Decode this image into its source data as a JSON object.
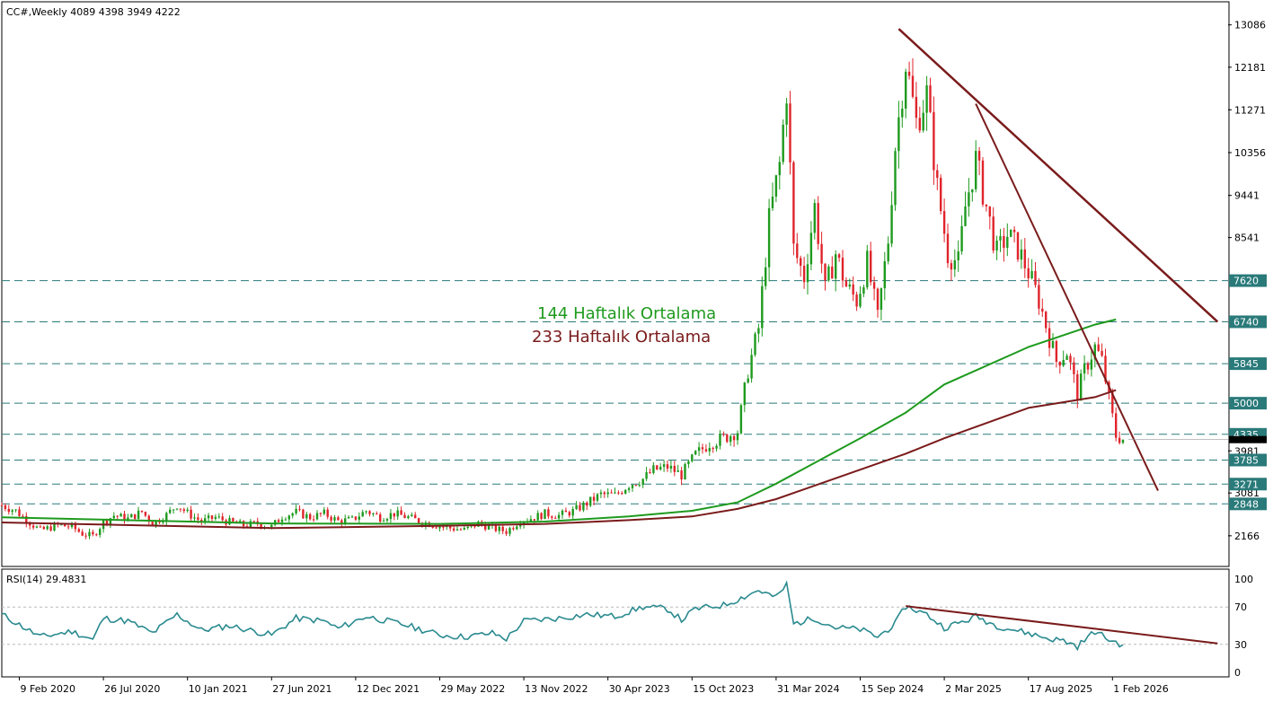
{
  "chart_data": {
    "type": "candlestick",
    "symbol_info": "CC#,Weekly  4089 4398 3949 4222",
    "ohlc_last": {
      "open": 4089,
      "high": 4398,
      "low": 3949,
      "close": 4222
    },
    "price_axis_ticks": [
      13086,
      12181,
      11271,
      10356,
      9441,
      8541,
      3981,
      3081,
      2166
    ],
    "price_range": [
      1530,
      13560
    ],
    "level_labels": [
      {
        "label": "7620",
        "value": 7620
      },
      {
        "label": "6740",
        "value": 6740
      },
      {
        "label": "5845",
        "value": 5845
      },
      {
        "label": "5000",
        "value": 5000
      },
      {
        "label": "4335",
        "value": 4335
      },
      {
        "label": "3785",
        "value": 3785
      },
      {
        "label": "3271",
        "value": 3271
      },
      {
        "label": "2848",
        "value": 2848
      }
    ],
    "current_price_marker": 4222,
    "x_tick_labels": [
      "9 Feb 2020",
      "26 Jul 2020",
      "10 Jan 2021",
      "27 Jun 2021",
      "12 Dec 2021",
      "29 May 2022",
      "13 Nov 2022",
      "30 Apr 2023",
      "15 Oct 2023",
      "31 Mar 2024",
      "15 Sep 2024",
      "2 Mar 2025",
      "17 Aug 2025",
      "1 Feb 2026"
    ],
    "x_tick_dates": [
      "2020-02-09",
      "2020-07-26",
      "2021-01-10",
      "2021-06-27",
      "2021-12-12",
      "2022-05-29",
      "2022-11-13",
      "2023-04-30",
      "2023-10-15",
      "2024-03-31",
      "2024-09-15",
      "2025-03-02",
      "2025-08-17",
      "2026-02-01"
    ],
    "price_series": [
      [
        "2020-01-05",
        2820
      ],
      [
        "2020-02-02",
        2700
      ],
      [
        "2020-03-01",
        2450
      ],
      [
        "2020-03-22",
        2280
      ],
      [
        "2020-04-26",
        2390
      ],
      [
        "2020-05-24",
        2360
      ],
      [
        "2020-06-14",
        2210
      ],
      [
        "2020-07-05",
        2160
      ],
      [
        "2020-07-26",
        2460
      ],
      [
        "2020-08-16",
        2600
      ],
      [
        "2020-09-13",
        2530
      ],
      [
        "2020-10-11",
        2680
      ],
      [
        "2020-11-01",
        2430
      ],
      [
        "2020-11-29",
        2610
      ],
      [
        "2020-12-20",
        2830
      ],
      [
        "2021-01-10",
        2650
      ],
      [
        "2021-02-07",
        2470
      ],
      [
        "2021-03-07",
        2560
      ],
      [
        "2021-04-04",
        2460
      ],
      [
        "2021-05-02",
        2390
      ],
      [
        "2021-05-30",
        2430
      ],
      [
        "2021-06-27",
        2360
      ],
      [
        "2021-07-18",
        2580
      ],
      [
        "2021-08-15",
        2670
      ],
      [
        "2021-09-12",
        2560
      ],
      [
        "2021-10-10",
        2640
      ],
      [
        "2021-11-07",
        2480
      ],
      [
        "2021-12-05",
        2510
      ],
      [
        "2022-01-02",
        2700
      ],
      [
        "2022-01-30",
        2560
      ],
      [
        "2022-02-27",
        2640
      ],
      [
        "2022-03-27",
        2560
      ],
      [
        "2022-04-24",
        2460
      ],
      [
        "2022-05-22",
        2390
      ],
      [
        "2022-06-19",
        2330
      ],
      [
        "2022-07-17",
        2290
      ],
      [
        "2022-08-14",
        2430
      ],
      [
        "2022-09-11",
        2330
      ],
      [
        "2022-10-09",
        2260
      ],
      [
        "2022-11-06",
        2490
      ],
      [
        "2022-12-04",
        2560
      ],
      [
        "2022-12-25",
        2640
      ],
      [
        "2023-01-22",
        2600
      ],
      [
        "2023-02-19",
        2690
      ],
      [
        "2023-03-19",
        2860
      ],
      [
        "2023-04-16",
        3050
      ],
      [
        "2023-05-14",
        3030
      ],
      [
        "2023-06-11",
        3260
      ],
      [
        "2023-07-09",
        3380
      ],
      [
        "2023-07-30",
        3570
      ],
      [
        "2023-08-27",
        3640
      ],
      [
        "2023-09-24",
        3470
      ],
      [
        "2023-10-22",
        3900
      ],
      [
        "2023-11-19",
        4150
      ],
      [
        "2023-12-17",
        4250
      ],
      [
        "2024-01-14",
        4400
      ],
      [
        "2024-02-04",
        5700
      ],
      [
        "2024-02-25",
        6600
      ],
      [
        "2024-03-17",
        8900
      ],
      [
        "2024-04-07",
        10100
      ],
      [
        "2024-04-21",
        11700
      ],
      [
        "2024-05-05",
        8300
      ],
      [
        "2024-05-26",
        7700
      ],
      [
        "2024-06-16",
        9200
      ],
      [
        "2024-07-07",
        7400
      ],
      [
        "2024-07-28",
        8200
      ],
      [
        "2024-08-18",
        7500
      ],
      [
        "2024-09-08",
        7200
      ],
      [
        "2024-09-29",
        8000
      ],
      [
        "2024-10-20",
        6800
      ],
      [
        "2024-11-10",
        8500
      ],
      [
        "2024-11-24",
        10500
      ],
      [
        "2024-12-15",
        12300
      ],
      [
        "2025-01-05",
        11000
      ],
      [
        "2025-01-26",
        11600
      ],
      [
        "2025-02-16",
        9600
      ],
      [
        "2025-03-09",
        8200
      ],
      [
        "2025-03-30",
        8000
      ],
      [
        "2025-04-13",
        9200
      ],
      [
        "2025-05-04",
        10200
      ],
      [
        "2025-05-25",
        9200
      ],
      [
        "2025-06-15",
        8200
      ],
      [
        "2025-07-06",
        8600
      ],
      [
        "2025-07-27",
        8300
      ],
      [
        "2025-08-17",
        7800
      ],
      [
        "2025-09-07",
        7200
      ],
      [
        "2025-09-28",
        6400
      ],
      [
        "2025-10-12",
        5900
      ],
      [
        "2025-11-02",
        6100
      ],
      [
        "2025-11-23",
        5200
      ],
      [
        "2025-12-07",
        5700
      ],
      [
        "2025-12-28",
        6200
      ],
      [
        "2026-01-11",
        5900
      ],
      [
        "2026-01-25",
        5100
      ],
      [
        "2026-02-08",
        4300
      ],
      [
        "2026-02-22",
        4222
      ]
    ],
    "series": [
      {
        "name": "144 Haftalık Ortalama",
        "color": "#1e9a1e",
        "points": [
          [
            "2020-01-05",
            2560
          ],
          [
            "2021-06-27",
            2430
          ],
          [
            "2022-05-29",
            2420
          ],
          [
            "2022-12-25",
            2470
          ],
          [
            "2023-06-11",
            2580
          ],
          [
            "2023-10-15",
            2700
          ],
          [
            "2024-01-14",
            2880
          ],
          [
            "2024-03-31",
            3280
          ],
          [
            "2024-09-15",
            4250
          ],
          [
            "2024-12-15",
            4800
          ],
          [
            "2025-03-02",
            5400
          ],
          [
            "2025-08-17",
            6200
          ],
          [
            "2025-12-28",
            6680
          ],
          [
            "2026-02-08",
            6790
          ]
        ]
      },
      {
        "name": "233 Haftalık Ortalama",
        "color": "#7a1b1b",
        "points": [
          [
            "2020-01-05",
            2450
          ],
          [
            "2021-06-27",
            2330
          ],
          [
            "2022-05-29",
            2380
          ],
          [
            "2022-12-25",
            2420
          ],
          [
            "2023-06-11",
            2500
          ],
          [
            "2023-10-15",
            2580
          ],
          [
            "2024-01-14",
            2740
          ],
          [
            "2024-03-31",
            2950
          ],
          [
            "2024-09-15",
            3580
          ],
          [
            "2024-12-15",
            3920
          ],
          [
            "2025-03-02",
            4250
          ],
          [
            "2025-08-17",
            4900
          ],
          [
            "2025-12-28",
            5130
          ],
          [
            "2026-02-08",
            5280
          ]
        ]
      }
    ],
    "trendlines": [
      {
        "from": [
          "2024-12-01",
          13000
        ],
        "to": [
          "2026-08-30",
          6740
        ],
        "color": "#7a1b1b"
      },
      {
        "from": [
          "2025-05-04",
          11400
        ],
        "to": [
          "2026-05-03",
          3130
        ],
        "color": "#7a1b1b"
      }
    ],
    "annotations": [
      "144 Haftalık Ortalama",
      "233 Haftalık Ortalama"
    ],
    "rsi": {
      "label": "RSI(14) 29.4831",
      "value": 29.4831,
      "ticks": [
        100,
        70,
        30,
        0
      ],
      "range": [
        0,
        100
      ],
      "points": [
        [
          "2020-01-05",
          62
        ],
        [
          "2020-03-22",
          38
        ],
        [
          "2020-05-24",
          44
        ],
        [
          "2020-07-05",
          35
        ],
        [
          "2020-07-26",
          58
        ],
        [
          "2020-09-13",
          55
        ],
        [
          "2020-11-01",
          42
        ],
        [
          "2020-12-20",
          62
        ],
        [
          "2021-02-07",
          45
        ],
        [
          "2021-04-04",
          50
        ],
        [
          "2021-06-27",
          40
        ],
        [
          "2021-08-15",
          58
        ],
        [
          "2021-10-10",
          55
        ],
        [
          "2021-11-07",
          47
        ],
        [
          "2022-01-02",
          60
        ],
        [
          "2022-03-27",
          50
        ],
        [
          "2022-05-29",
          40
        ],
        [
          "2022-07-17",
          38
        ],
        [
          "2022-09-11",
          42
        ],
        [
          "2022-10-09",
          36
        ],
        [
          "2022-11-13",
          55
        ],
        [
          "2023-01-22",
          58
        ],
        [
          "2023-03-19",
          62
        ],
        [
          "2023-05-14",
          60
        ],
        [
          "2023-07-09",
          70
        ],
        [
          "2023-08-27",
          68
        ],
        [
          "2023-09-24",
          56
        ],
        [
          "2023-10-22",
          68
        ],
        [
          "2023-12-17",
          72
        ],
        [
          "2024-01-14",
          78
        ],
        [
          "2024-02-25",
          88
        ],
        [
          "2024-03-31",
          80
        ],
        [
          "2024-04-21",
          94
        ],
        [
          "2024-05-05",
          52
        ],
        [
          "2024-06-16",
          58
        ],
        [
          "2024-07-28",
          48
        ],
        [
          "2024-09-15",
          46
        ],
        [
          "2024-10-20",
          38
        ],
        [
          "2024-11-24",
          52
        ],
        [
          "2024-12-15",
          71
        ],
        [
          "2025-01-26",
          62
        ],
        [
          "2025-03-02",
          48
        ],
        [
          "2025-04-13",
          55
        ],
        [
          "2025-05-04",
          60
        ],
        [
          "2025-06-15",
          50
        ],
        [
          "2025-08-17",
          42
        ],
        [
          "2025-09-28",
          36
        ],
        [
          "2025-10-26",
          34
        ],
        [
          "2025-11-23",
          28
        ],
        [
          "2025-12-28",
          44
        ],
        [
          "2026-01-25",
          35
        ],
        [
          "2026-02-22",
          29.4831
        ]
      ]
    },
    "rsi_trendline": {
      "from": [
        "2024-12-15",
        71
      ],
      "to": [
        "2026-08-30",
        31
      ],
      "color": "#7a1b1b"
    },
    "colors": {
      "up": "#1e9a1e",
      "down": "#e0242b",
      "level_line": "#2a7a7a",
      "rsi": "#2a8a8f",
      "marker_box": "#000000"
    }
  }
}
